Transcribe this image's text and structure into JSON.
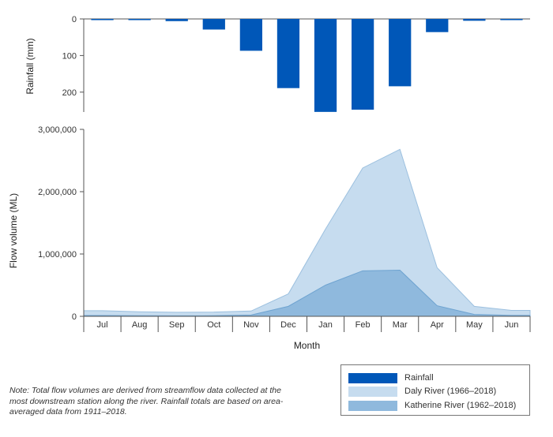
{
  "chart_data": [
    {
      "type": "bar",
      "id": "rainfall",
      "categories": [
        "Jul",
        "Aug",
        "Sep",
        "Oct",
        "Nov",
        "Dec",
        "Jan",
        "Feb",
        "Mar",
        "Apr",
        "May",
        "Jun"
      ],
      "ylabel": "Rainfall (mm)",
      "y_inverted": true,
      "ylim": [
        0,
        250
      ],
      "yticks": [
        0,
        100,
        200
      ],
      "ytick_labels": [
        "0",
        "100",
        "200"
      ],
      "series": [
        {
          "name": "Rainfall",
          "color": "#0057b8",
          "values": [
            1,
            1,
            6,
            29,
            87,
            189,
            254,
            248,
            184,
            36,
            5,
            1
          ]
        }
      ]
    },
    {
      "type": "area",
      "id": "flow",
      "categories": [
        "Jul",
        "Aug",
        "Sep",
        "Oct",
        "Nov",
        "Dec",
        "Jan",
        "Feb",
        "Mar",
        "Apr",
        "May",
        "Jun"
      ],
      "xlabel": "Month",
      "ylabel": "Flow volume (ML)",
      "ylim": [
        0,
        3000000
      ],
      "yticks": [
        0,
        1000000,
        2000000,
        3000000
      ],
      "ytick_labels": [
        "0",
        "1,000,000",
        "2,000,000",
        "3,000,000"
      ],
      "series": [
        {
          "name": "Daly River (1966–2018)",
          "color": "#c6dcef",
          "stroke": "#9cc0df",
          "values": [
            90000,
            72000,
            65000,
            68000,
            85000,
            360000,
            1400000,
            2380000,
            2680000,
            780000,
            160000,
            95000
          ]
        },
        {
          "name": "Katherine River (1962–2018)",
          "color": "#8fb9dd",
          "stroke": "#6ea3d0",
          "values": [
            12000,
            9000,
            8000,
            9000,
            20000,
            160000,
            500000,
            730000,
            740000,
            170000,
            30000,
            15000
          ]
        }
      ]
    }
  ],
  "note": "Note: Total flow volumes are derived from streamflow data collected at the most downstream station along the river. Rainfall totals are based on area-averaged data from 1911–2018.",
  "legend": [
    {
      "label": "Rainfall",
      "color": "#0057b8"
    },
    {
      "label": "Daly River (1966–2018)",
      "color": "#c6dcef"
    },
    {
      "label": "Katherine River (1962–2018)",
      "color": "#8fb9dd"
    }
  ]
}
